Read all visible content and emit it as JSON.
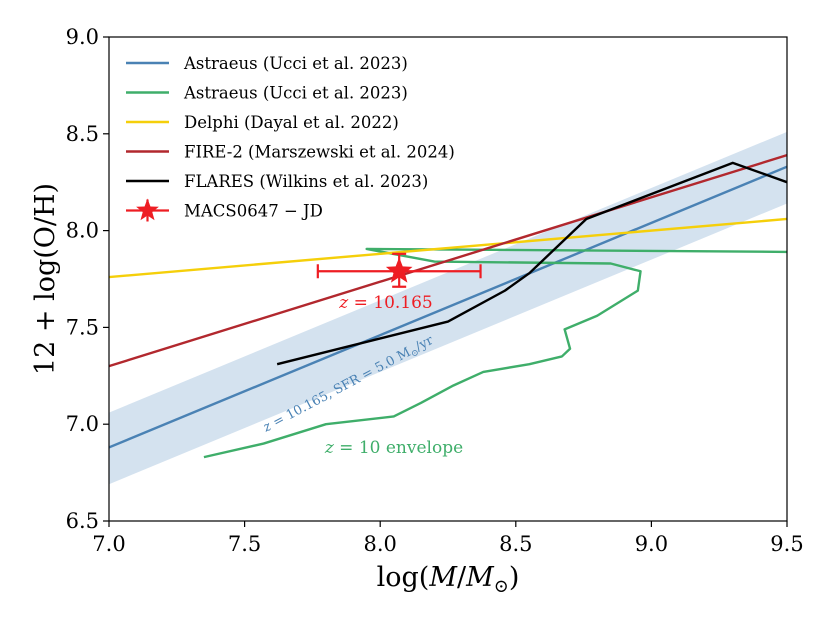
{
  "chart_data": {
    "type": "line",
    "xlabel": "log(M/M⊙)",
    "ylabel": "12 + log(O/H)",
    "xlim": [
      7.0,
      9.5
    ],
    "ylim": [
      6.5,
      9.0
    ],
    "x_ticks": [
      "7.0",
      "7.5",
      "8.0",
      "8.5",
      "9.0",
      "9.5"
    ],
    "y_ticks": [
      "6.5",
      "7.0",
      "7.5",
      "8.0",
      "8.5",
      "9.0"
    ],
    "grid": false,
    "legend_position": "top-left",
    "band": {
      "color": "#c6d8ea",
      "x": [
        7.0,
        9.5
      ],
      "lower": [
        6.69,
        8.14
      ],
      "upper": [
        7.06,
        8.51
      ]
    },
    "series": [
      {
        "name": "Astraeus (Ucci et al. 2023)",
        "color": "#4a82b4",
        "x": [
          7.0,
          9.5
        ],
        "y": [
          6.88,
          8.33
        ]
      },
      {
        "name": "Astraeus (Ucci et al. 2023)",
        "color": "#3fae6a",
        "x": [
          9.5,
          7.95,
          8.2,
          8.85,
          8.96,
          8.95,
          8.8,
          8.68,
          8.7,
          8.67,
          8.55,
          8.38,
          8.27,
          8.15,
          8.05,
          7.8,
          7.57,
          7.35
        ],
        "y": [
          7.89,
          7.905,
          7.84,
          7.83,
          7.79,
          7.69,
          7.56,
          7.49,
          7.39,
          7.35,
          7.31,
          7.27,
          7.2,
          7.11,
          7.04,
          7.0,
          6.9,
          6.83
        ]
      },
      {
        "name": "Delphi (Dayal et al. 2022)",
        "color": "#f5cf0a",
        "x": [
          7.0,
          9.5
        ],
        "y": [
          7.76,
          8.06
        ]
      },
      {
        "name": "FIRE-2 (Marszewski et al. 2024)",
        "color": "#b2282e",
        "x": [
          7.0,
          9.5
        ],
        "y": [
          7.3,
          8.39
        ]
      },
      {
        "name": "FLARES (Wilkins et al. 2023)",
        "color": "#000000",
        "x": [
          7.62,
          8.25,
          8.46,
          8.55,
          8.76,
          9.3,
          9.5
        ],
        "y": [
          7.31,
          7.53,
          7.69,
          7.78,
          8.06,
          8.35,
          8.25
        ]
      }
    ],
    "point": {
      "name": "MACS0647 − JD",
      "color": "#ee1d23",
      "x": 8.07,
      "y": 7.79,
      "x_err": [
        0.3,
        0.3
      ],
      "y_err": [
        0.08,
        0.09
      ]
    },
    "annotations": {
      "redshift": {
        "text": "z = 10.165",
        "color": "#ee1d23"
      },
      "band": {
        "text": "z = 10.165, SFR = 5.0 M⊙/yr",
        "color": "#4a82b4"
      },
      "envelope": {
        "text": "z = 10 envelope",
        "color": "#3fae6a"
      }
    }
  }
}
